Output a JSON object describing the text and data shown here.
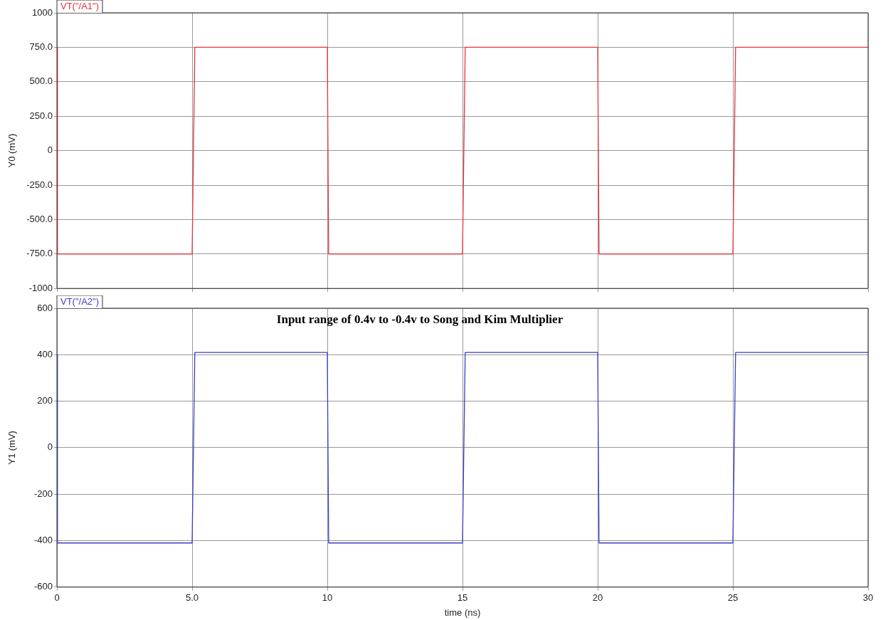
{
  "chart_data": [
    {
      "type": "line",
      "ylabel": "Y0 (mV)",
      "xlim": [
        0,
        30
      ],
      "xticks": [
        0,
        5,
        10,
        15,
        20,
        25,
        30
      ],
      "ylim": [
        -1000,
        1000
      ],
      "yticks": [
        {
          "value": -1000,
          "label": "-1000"
        },
        {
          "value": -750,
          "label": "-750.0"
        },
        {
          "value": -500,
          "label": "-500.0"
        },
        {
          "value": -250,
          "label": "-250.0"
        },
        0,
        {
          "value": 250,
          "label": "250.0"
        },
        {
          "value": 500,
          "label": "500.0"
        },
        {
          "value": 750,
          "label": "750.0"
        },
        1000
      ],
      "tick_labels": "y",
      "grid": true,
      "legend": "top left",
      "marker": "none",
      "series": [
        {
          "name": "VT(\"/A1\")",
          "color": "#e8323c",
          "x": [
            0,
            0.02,
            5.0,
            5.1,
            10.0,
            10.05,
            15.0,
            15.1,
            20.0,
            20.05,
            25.0,
            25.1,
            30
          ],
          "values": [
            750,
            -750,
            -750,
            750,
            750,
            -750,
            -750,
            750,
            750,
            -750,
            -750,
            750,
            750
          ]
        }
      ]
    },
    {
      "type": "line",
      "xlabel": "time (ns)",
      "ylabel": "Y1 (mV)",
      "annotations": [
        "Input range of 0.4v to -0.4v to Song and Kim Multiplier"
      ],
      "xlim": [
        0,
        30
      ],
      "xticks": [
        0,
        {
          "value": 5,
          "label": "5.0"
        },
        10,
        15,
        20,
        25,
        30
      ],
      "ylim": [
        -600,
        600
      ],
      "yticks": [
        -600,
        -400,
        -200,
        0,
        200,
        400,
        600
      ],
      "grid": true,
      "legend": "top left",
      "marker": "none",
      "series": [
        {
          "name": "VT(\"/A2\")",
          "color": "#3c3cc8",
          "x": [
            0,
            0.02,
            5.0,
            5.1,
            10.0,
            10.05,
            15.0,
            15.1,
            20.0,
            20.05,
            25.0,
            25.1,
            30
          ],
          "values": [
            400,
            -410,
            -410,
            410,
            410,
            -410,
            -410,
            410,
            410,
            -410,
            -410,
            410,
            410
          ]
        }
      ]
    }
  ]
}
